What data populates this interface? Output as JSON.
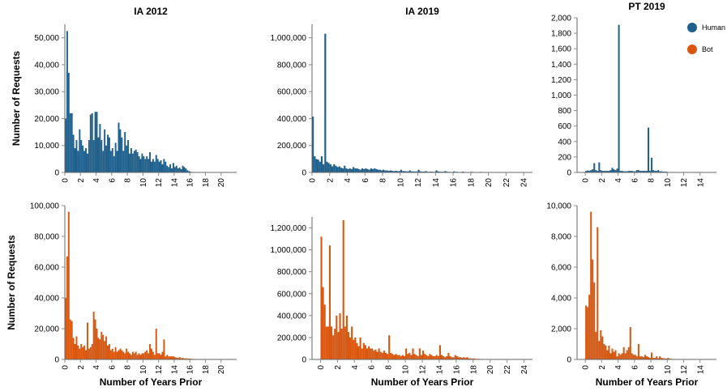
{
  "legend": {
    "items": [
      {
        "label": "Human",
        "color": "#1f5f8b"
      },
      {
        "label": "Bot",
        "color": "#d8560e"
      }
    ]
  },
  "chart_data": [
    {
      "type": "bar",
      "title": "IA 2012",
      "ylabel": "Number of Requests",
      "xlabel": "",
      "color": "#1f5f8b",
      "xlim": [
        0,
        22
      ],
      "ylim": [
        0,
        55000
      ],
      "xticks": [
        0,
        2,
        4,
        6,
        8,
        10,
        12,
        14,
        16,
        18,
        20
      ],
      "yticks": [
        0,
        10000,
        20000,
        30000,
        40000,
        50000
      ],
      "ytick_labels": [
        "0",
        "10,000",
        "20,000",
        "30,000",
        "40,000",
        "50,000"
      ],
      "bin_width": 0.2,
      "x": [
        0,
        0.2,
        0.4,
        0.6,
        0.8,
        1.0,
        1.2,
        1.4,
        1.6,
        1.8,
        2.0,
        2.2,
        2.4,
        2.6,
        2.8,
        3.0,
        3.2,
        3.4,
        3.6,
        3.8,
        4.0,
        4.2,
        4.4,
        4.6,
        4.8,
        5.0,
        5.2,
        5.4,
        5.6,
        5.8,
        6.0,
        6.2,
        6.4,
        6.6,
        6.8,
        7.0,
        7.2,
        7.4,
        7.6,
        7.8,
        8.0,
        8.2,
        8.4,
        8.6,
        8.8,
        9.0,
        9.2,
        9.4,
        9.6,
        9.8,
        10.0,
        10.2,
        10.4,
        10.6,
        10.8,
        11.0,
        11.2,
        11.4,
        11.6,
        11.8,
        12.0,
        12.2,
        12.4,
        12.6,
        12.8,
        13.0,
        13.2,
        13.4,
        13.6,
        13.8,
        14.0,
        14.2,
        14.4,
        14.6,
        14.8,
        15.0,
        15.2,
        15.4,
        15.6,
        15.8,
        16.0,
        16.2
      ],
      "values": [
        20000,
        52500,
        37000,
        22000,
        22000,
        14000,
        9000,
        12000,
        8000,
        16000,
        12000,
        10000,
        8000,
        9000,
        7000,
        12000,
        21500,
        22000,
        12000,
        22500,
        22500,
        13000,
        18000,
        12000,
        8000,
        16000,
        10000,
        14000,
        13000,
        8000,
        9000,
        6000,
        11000,
        8000,
        18500,
        16000,
        13000,
        8000,
        15000,
        10000,
        12000,
        7000,
        9000,
        7000,
        8000,
        8500,
        7500,
        6000,
        5000,
        7000,
        6000,
        5000,
        6000,
        5000,
        7500,
        4000,
        5000,
        4000,
        6500,
        5000,
        4000,
        4500,
        3000,
        5000,
        4000,
        2500,
        2000,
        3000,
        1500,
        3500,
        2000,
        2500,
        1500,
        1800,
        1200,
        2500,
        2000,
        1500,
        800,
        500,
        300,
        150
      ]
    },
    {
      "type": "bar",
      "title": "IA 2019",
      "ylabel": "",
      "xlabel": "",
      "color": "#1f5f8b",
      "xlim": [
        0,
        25
      ],
      "ylim": [
        0,
        1100000
      ],
      "xticks": [
        0,
        2,
        4,
        6,
        8,
        10,
        12,
        14,
        16,
        18,
        20,
        22,
        24
      ],
      "yticks": [
        0,
        200000,
        400000,
        600000,
        800000,
        1000000
      ],
      "ytick_labels": [
        "0",
        "200,000",
        "400,000",
        "600,000",
        "800,000",
        "1,000,000"
      ],
      "bin_width": 0.2,
      "x": [
        0,
        0.2,
        0.4,
        0.6,
        0.8,
        1.0,
        1.2,
        1.4,
        1.6,
        1.8,
        2.0,
        2.2,
        2.4,
        2.6,
        2.8,
        3.0,
        3.2,
        3.4,
        3.6,
        3.8,
        4.0,
        4.2,
        4.4,
        4.6,
        4.8,
        5.0,
        5.2,
        5.4,
        5.6,
        5.8,
        6.0,
        6.2,
        6.4,
        6.6,
        6.8,
        7.0,
        7.2,
        7.4,
        7.6,
        7.8,
        8.0,
        8.2,
        8.4,
        8.6,
        8.8,
        9.0,
        9.2,
        9.4,
        9.6,
        9.8,
        10.0,
        10.2,
        10.4,
        10.6,
        10.8,
        11.0,
        11.2,
        11.4,
        11.6,
        11.8,
        12.0,
        12.2,
        12.4,
        12.6,
        12.8,
        13.0,
        13.2,
        13.4,
        13.6,
        13.8,
        14.0,
        14.2,
        14.4,
        14.6,
        14.8,
        15.0,
        15.2,
        15.4,
        15.6,
        15.8,
        16.0,
        16.2,
        16.4,
        16.6,
        16.8,
        17.0,
        17.2,
        17.4,
        17.6,
        17.8,
        18.0,
        18.2,
        18.4,
        18.6,
        18.8,
        19.0,
        19.2,
        19.4,
        19.6,
        19.8,
        20.0,
        20.2,
        20.4,
        20.6,
        20.8,
        21.0,
        21.2,
        21.4,
        21.6,
        21.8,
        22.0,
        22.2,
        22.4,
        22.6,
        22.8
      ],
      "values": [
        415000,
        120000,
        100000,
        95000,
        80000,
        120000,
        60000,
        1030000,
        80000,
        70000,
        60000,
        45000,
        60000,
        50000,
        40000,
        45000,
        35000,
        30000,
        50000,
        30000,
        25000,
        30000,
        25000,
        40000,
        30000,
        30000,
        25000,
        20000,
        30000,
        25000,
        30000,
        25000,
        20000,
        30000,
        25000,
        30000,
        25000,
        20000,
        20000,
        15000,
        20000,
        15000,
        15000,
        12000,
        15000,
        12000,
        10000,
        12000,
        10000,
        10000,
        20000,
        10000,
        10000,
        8000,
        8000,
        15000,
        8000,
        8000,
        7000,
        7000,
        20000,
        8000,
        6000,
        6000,
        10000,
        5000,
        5000,
        6000,
        5000,
        4000,
        15000,
        8000,
        6000,
        5000,
        5000,
        10000,
        6000,
        4000,
        4000,
        3000,
        8000,
        5000,
        4000,
        3000,
        3000,
        6000,
        4000,
        3000,
        3000,
        2000,
        5000,
        3000,
        2500,
        2000,
        2000,
        4000,
        2500,
        2000,
        1500,
        1500,
        3000,
        2000,
        1500,
        1200,
        1000,
        2500,
        1500,
        1000,
        800,
        600,
        1000,
        600,
        400,
        300,
        200
      ]
    },
    {
      "type": "bar",
      "title": "PT 2019",
      "ylabel": "",
      "xlabel": "",
      "color": "#1f5f8b",
      "xlim": [
        -1,
        16
      ],
      "ylim": [
        0,
        2000
      ],
      "xticks": [
        0,
        2,
        4,
        6,
        8,
        10,
        12,
        14
      ],
      "yticks": [
        0,
        200,
        400,
        600,
        800,
        1000,
        1200,
        1400,
        1600,
        1800,
        2000
      ],
      "ytick_labels": [
        "0",
        "200",
        "400",
        "600",
        "800",
        "1,000",
        "1,200",
        "1,400",
        "1,600",
        "1,800",
        "2,000"
      ],
      "bin_width": 0.2,
      "x": [
        0,
        0.2,
        0.4,
        0.6,
        0.8,
        1.0,
        1.2,
        1.4,
        1.6,
        1.8,
        2.0,
        2.2,
        2.4,
        2.6,
        2.8,
        3.0,
        3.2,
        3.4,
        3.6,
        3.8,
        4.0,
        4.2,
        4.4,
        4.6,
        4.8,
        5.0,
        5.2,
        5.4,
        5.6,
        5.8,
        6.0,
        6.2,
        6.4,
        6.6,
        6.8,
        7.0,
        7.2,
        7.4,
        7.6,
        7.8,
        8.0,
        8.2,
        8.4,
        8.6,
        8.8,
        9.0,
        9.2,
        9.4,
        9.6,
        9.8
      ],
      "values": [
        20,
        25,
        20,
        30,
        40,
        120,
        30,
        20,
        130,
        30,
        20,
        20,
        20,
        20,
        20,
        30,
        60,
        40,
        30,
        50,
        1910,
        20,
        20,
        15,
        15,
        15,
        20,
        20,
        20,
        15,
        15,
        30,
        30,
        20,
        20,
        20,
        20,
        20,
        580,
        20,
        190,
        30,
        20,
        20,
        30,
        15,
        15,
        10,
        10,
        10
      ]
    },
    {
      "type": "bar",
      "title": "",
      "ylabel": "Number of Requests",
      "xlabel": "Number of Years Prior",
      "color": "#d8560e",
      "xlim": [
        0,
        22
      ],
      "ylim": [
        0,
        100000
      ],
      "xticks": [
        0,
        2,
        4,
        6,
        8,
        10,
        12,
        14,
        16,
        18,
        20
      ],
      "yticks": [
        0,
        20000,
        40000,
        60000,
        80000,
        100000
      ],
      "ytick_labels": [
        "0",
        "20,000",
        "40,000",
        "60,000",
        "80,000",
        "100,000"
      ],
      "bin_width": 0.2,
      "x": [
        0,
        0.2,
        0.4,
        0.6,
        0.8,
        1.0,
        1.2,
        1.4,
        1.6,
        1.8,
        2.0,
        2.2,
        2.4,
        2.6,
        2.8,
        3.0,
        3.2,
        3.4,
        3.6,
        3.8,
        4.0,
        4.2,
        4.4,
        4.6,
        4.8,
        5.0,
        5.2,
        5.4,
        5.6,
        5.8,
        6.0,
        6.2,
        6.4,
        6.6,
        6.8,
        7.0,
        7.2,
        7.4,
        7.6,
        7.8,
        8.0,
        8.2,
        8.4,
        8.6,
        8.8,
        9.0,
        9.2,
        9.4,
        9.6,
        9.8,
        10.0,
        10.2,
        10.4,
        10.6,
        10.8,
        11.0,
        11.2,
        11.4,
        11.6,
        11.8,
        12.0,
        12.2,
        12.4,
        12.6,
        12.8,
        13.0,
        13.2,
        13.4,
        13.6,
        13.8,
        14.0,
        14.2,
        14.4,
        14.6,
        14.8,
        15.0,
        15.2,
        15.4,
        15.6,
        15.8,
        16.0,
        16.2,
        16.4,
        16.6,
        16.8,
        17.0,
        17.2,
        17.4,
        17.6,
        17.8
      ],
      "values": [
        40000,
        67000,
        96000,
        26000,
        25000,
        14000,
        10000,
        15000,
        9000,
        7000,
        10000,
        8000,
        9000,
        6000,
        24000,
        7000,
        8000,
        10000,
        31000,
        26000,
        20000,
        14000,
        13000,
        18000,
        16000,
        12000,
        15000,
        9000,
        10000,
        6000,
        7000,
        5000,
        8000,
        5000,
        6000,
        7000,
        6000,
        5000,
        4000,
        7000,
        5000,
        4000,
        3000,
        5000,
        4000,
        5000,
        3000,
        4000,
        3000,
        4000,
        4000,
        5000,
        6000,
        4000,
        10000,
        7000,
        5000,
        3000,
        20000,
        4000,
        4000,
        3000,
        5000,
        13000,
        2000,
        3000,
        2000,
        2000,
        2000,
        2000,
        1500,
        1200,
        1000,
        1500,
        800,
        1000,
        600,
        800,
        500,
        600,
        500,
        400,
        300,
        300,
        200,
        200,
        200,
        150,
        100,
        100
      ]
    },
    {
      "type": "bar",
      "title": "",
      "ylabel": "",
      "xlabel": "Number of Years Prior",
      "color": "#d8560e",
      "xlim": [
        -1,
        25
      ],
      "ylim": [
        0,
        1300000
      ],
      "xticks": [
        0,
        2,
        4,
        6,
        8,
        10,
        12,
        14,
        16,
        18,
        20,
        22,
        24
      ],
      "yticks": [
        0,
        200000,
        400000,
        600000,
        800000,
        1000000,
        1200000
      ],
      "ytick_labels": [
        "0",
        "200,000",
        "400,000",
        "600,000",
        "800,000",
        "1,000,000",
        "1,200,000"
      ],
      "bin_width": 0.2,
      "x": [
        0,
        0.2,
        0.4,
        0.6,
        0.8,
        1.0,
        1.2,
        1.4,
        1.6,
        1.8,
        2.0,
        2.2,
        2.4,
        2.6,
        2.8,
        3.0,
        3.2,
        3.4,
        3.6,
        3.8,
        4.0,
        4.2,
        4.4,
        4.6,
        4.8,
        5.0,
        5.2,
        5.4,
        5.6,
        5.8,
        6.0,
        6.2,
        6.4,
        6.6,
        6.8,
        7.0,
        7.2,
        7.4,
        7.6,
        7.8,
        8.0,
        8.2,
        8.4,
        8.6,
        8.8,
        9.0,
        9.2,
        9.4,
        9.6,
        9.8,
        10.0,
        10.2,
        10.4,
        10.6,
        10.8,
        11.0,
        11.2,
        11.4,
        11.6,
        11.8,
        12.0,
        12.2,
        12.4,
        12.6,
        12.8,
        13.0,
        13.2,
        13.4,
        13.6,
        13.8,
        14.0,
        14.2,
        14.4,
        14.6,
        14.8,
        15.0,
        15.2,
        15.4,
        15.6,
        15.8,
        16.0,
        16.2,
        16.4,
        16.6,
        16.8,
        17.0,
        17.2,
        17.4,
        17.6,
        17.8,
        18.0,
        18.2,
        18.4,
        18.6,
        18.8,
        19.0,
        19.2,
        19.4,
        19.6,
        19.8,
        20.0,
        20.2
      ],
      "values": [
        1120000,
        660000,
        500000,
        300000,
        300000,
        1040000,
        300000,
        220000,
        280000,
        400000,
        250000,
        420000,
        280000,
        1270000,
        300000,
        400000,
        250000,
        200000,
        300000,
        180000,
        200000,
        150000,
        120000,
        200000,
        100000,
        150000,
        130000,
        100000,
        120000,
        100000,
        100000,
        80000,
        90000,
        70000,
        100000,
        70000,
        60000,
        80000,
        60000,
        50000,
        220000,
        60000,
        50000,
        40000,
        50000,
        40000,
        40000,
        30000,
        40000,
        30000,
        100000,
        50000,
        60000,
        40000,
        100000,
        50000,
        40000,
        30000,
        100000,
        40000,
        80000,
        50000,
        40000,
        30000,
        50000,
        40000,
        30000,
        30000,
        40000,
        30000,
        130000,
        40000,
        30000,
        20000,
        30000,
        60000,
        30000,
        20000,
        20000,
        40000,
        30000,
        20000,
        20000,
        15000,
        20000,
        15000,
        20000,
        10000,
        10000,
        8000,
        10000,
        6000,
        5000,
        5000,
        4000,
        3000,
        3000,
        2000,
        2000,
        1500,
        1000,
        500
      ]
    },
    {
      "type": "bar",
      "title": "",
      "ylabel": "",
      "xlabel": "Number of Years Prior",
      "color": "#d8560e",
      "xlim": [
        -1,
        16
      ],
      "ylim": [
        0,
        10000
      ],
      "xticks": [
        0,
        2,
        4,
        6,
        8,
        10,
        12,
        14
      ],
      "yticks": [
        0,
        2000,
        4000,
        6000,
        8000,
        10000
      ],
      "ytick_labels": [
        "0",
        "2,000",
        "4,000",
        "6,000",
        "8,000",
        "10,000"
      ],
      "bin_width": 0.2,
      "x": [
        0,
        0.2,
        0.4,
        0.6,
        0.8,
        1.0,
        1.2,
        1.4,
        1.6,
        1.8,
        2.0,
        2.2,
        2.4,
        2.6,
        2.8,
        3.0,
        3.2,
        3.4,
        3.6,
        3.8,
        4.0,
        4.2,
        4.4,
        4.6,
        4.8,
        5.0,
        5.2,
        5.4,
        5.6,
        5.8,
        6.0,
        6.2,
        6.4,
        6.6,
        6.8,
        7.0,
        7.2,
        7.4,
        7.6,
        7.8,
        8.0,
        8.2,
        8.4,
        8.6,
        8.8,
        9.0,
        9.2,
        9.4,
        9.6,
        9.8,
        10.0,
        10.2,
        10.4,
        10.6,
        10.8,
        11.0,
        11.2,
        11.4,
        11.6,
        11.8,
        12.0,
        12.2,
        12.4,
        12.6,
        12.8,
        13.0,
        13.2,
        13.4
      ],
      "values": [
        3500,
        3400,
        4200,
        9600,
        6500,
        5000,
        1800,
        8600,
        1200,
        1900,
        1500,
        1000,
        900,
        600,
        900,
        400,
        700,
        500,
        600,
        200,
        400,
        300,
        400,
        800,
        400,
        600,
        800,
        2100,
        400,
        300,
        300,
        200,
        1000,
        200,
        200,
        150,
        300,
        200,
        150,
        100,
        450,
        100,
        100,
        200,
        80,
        200,
        100,
        80,
        60,
        50,
        100,
        50,
        40,
        30,
        20,
        20,
        20,
        15,
        15,
        10,
        10,
        10,
        8,
        5,
        5,
        5,
        3,
        3
      ]
    }
  ]
}
